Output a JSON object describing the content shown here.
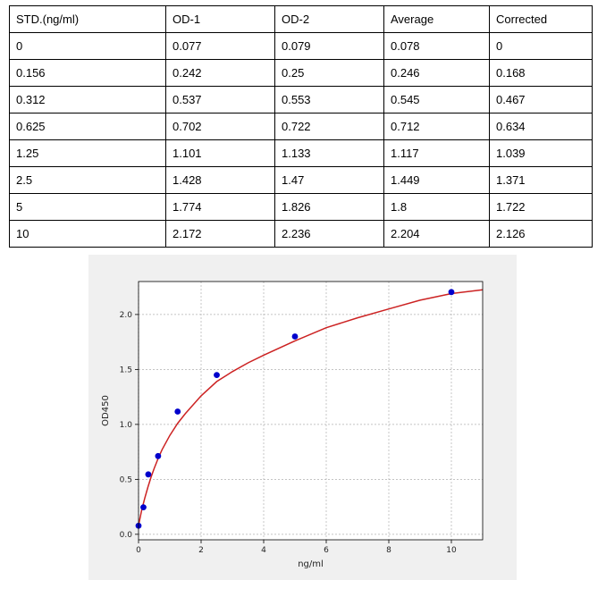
{
  "table": {
    "headers": [
      "STD.(ng/ml)",
      "OD-1",
      "OD-2",
      "Average",
      "Corrected"
    ],
    "rows": [
      [
        "0",
        "0.077",
        "0.079",
        "0.078",
        "0"
      ],
      [
        "0.156",
        "0.242",
        "0.25",
        "0.246",
        "0.168"
      ],
      [
        "0.312",
        "0.537",
        "0.553",
        "0.545",
        "0.467"
      ],
      [
        "0.625",
        "0.702",
        "0.722",
        "0.712",
        "0.634"
      ],
      [
        "1.25",
        "1.101",
        "1.133",
        "1.117",
        "1.039"
      ],
      [
        "2.5",
        "1.428",
        "1.47",
        "1.449",
        "1.371"
      ],
      [
        "5",
        "1.774",
        "1.826",
        "1.8",
        "1.722"
      ],
      [
        "10",
        "2.172",
        "2.236",
        "2.204",
        "2.126"
      ]
    ]
  },
  "chart_data": {
    "type": "scatter",
    "title": "",
    "xlabel": "ng/ml",
    "ylabel": "OD450",
    "xlim": [
      0,
      11
    ],
    "ylim": [
      -0.05,
      2.3
    ],
    "xticks": [
      0,
      2,
      4,
      6,
      8,
      10
    ],
    "yticks": [
      0.0,
      0.5,
      1.0,
      1.5,
      2.0
    ],
    "xtick_labels": [
      "0",
      "2",
      "4",
      "6",
      "8",
      "10"
    ],
    "ytick_labels": [
      "0.0",
      "0.5",
      "1.0",
      "1.5",
      "2.0"
    ],
    "grid": true,
    "series": [
      {
        "x": [
          0,
          0.156,
          0.312,
          0.625,
          1.25,
          2.5,
          5,
          10
        ],
        "y": [
          0.078,
          0.246,
          0.545,
          0.712,
          1.117,
          1.449,
          1.8,
          2.204
        ],
        "color": "#0000cc"
      }
    ],
    "fit_curve": {
      "color": "#cc2222",
      "points": [
        [
          0,
          0.08
        ],
        [
          0.1,
          0.22
        ],
        [
          0.2,
          0.33
        ],
        [
          0.3,
          0.43
        ],
        [
          0.4,
          0.52
        ],
        [
          0.5,
          0.6
        ],
        [
          0.625,
          0.69
        ],
        [
          0.75,
          0.77
        ],
        [
          1.0,
          0.9
        ],
        [
          1.25,
          1.01
        ],
        [
          1.5,
          1.1
        ],
        [
          2.0,
          1.26
        ],
        [
          2.5,
          1.39
        ],
        [
          3.0,
          1.48
        ],
        [
          3.5,
          1.56
        ],
        [
          4.0,
          1.63
        ],
        [
          5.0,
          1.76
        ],
        [
          6.0,
          1.88
        ],
        [
          7.0,
          1.97
        ],
        [
          8.0,
          2.05
        ],
        [
          9.0,
          2.13
        ],
        [
          10.0,
          2.19
        ],
        [
          11.0,
          2.225
        ]
      ]
    },
    "colors": {
      "panel_bg": "#f0f0f0",
      "plot_bg": "#ffffff",
      "grid": "#b0b0b0"
    }
  }
}
